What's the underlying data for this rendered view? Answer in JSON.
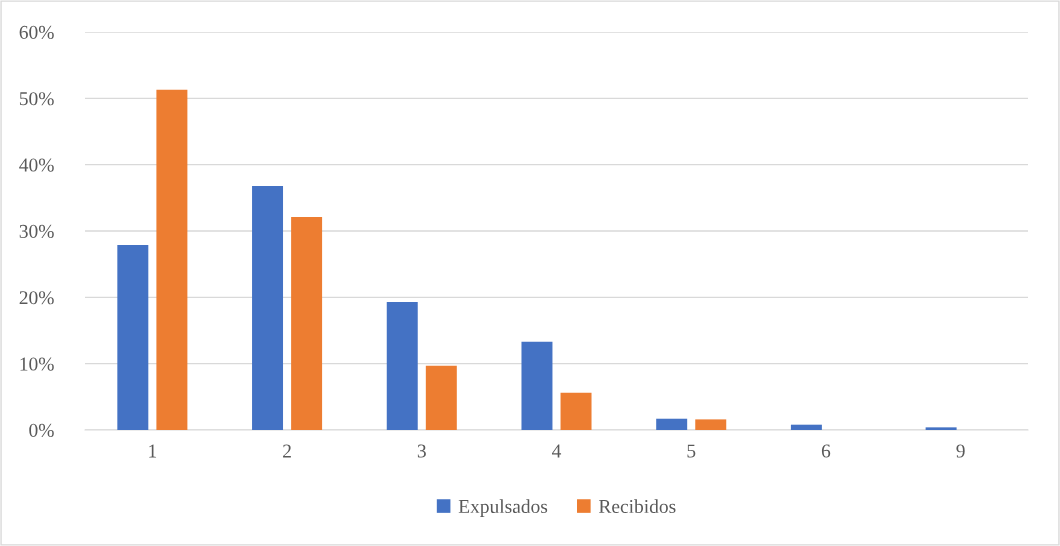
{
  "chart_data": {
    "type": "bar",
    "categories": [
      "1",
      "2",
      "3",
      "4",
      "5",
      "6",
      "9"
    ],
    "series": [
      {
        "name": "Expulsados",
        "color": "#4472c4",
        "values": [
          27.9,
          36.8,
          19.3,
          13.3,
          1.7,
          0.8,
          0.4
        ]
      },
      {
        "name": "Recibidos",
        "color": "#ed7d31",
        "values": [
          51.3,
          32.1,
          9.7,
          5.6,
          1.6,
          0,
          0
        ]
      }
    ],
    "ylim": [
      0,
      60
    ],
    "yticks": [
      {
        "value": 0,
        "label": "0%"
      },
      {
        "value": 10,
        "label": "10%"
      },
      {
        "value": 20,
        "label": "20%"
      },
      {
        "value": 30,
        "label": "30%"
      },
      {
        "value": 40,
        "label": "40%"
      },
      {
        "value": 50,
        "label": "50%"
      },
      {
        "value": 60,
        "label": "60%"
      }
    ],
    "grid": "y",
    "legend": "bottom"
  }
}
